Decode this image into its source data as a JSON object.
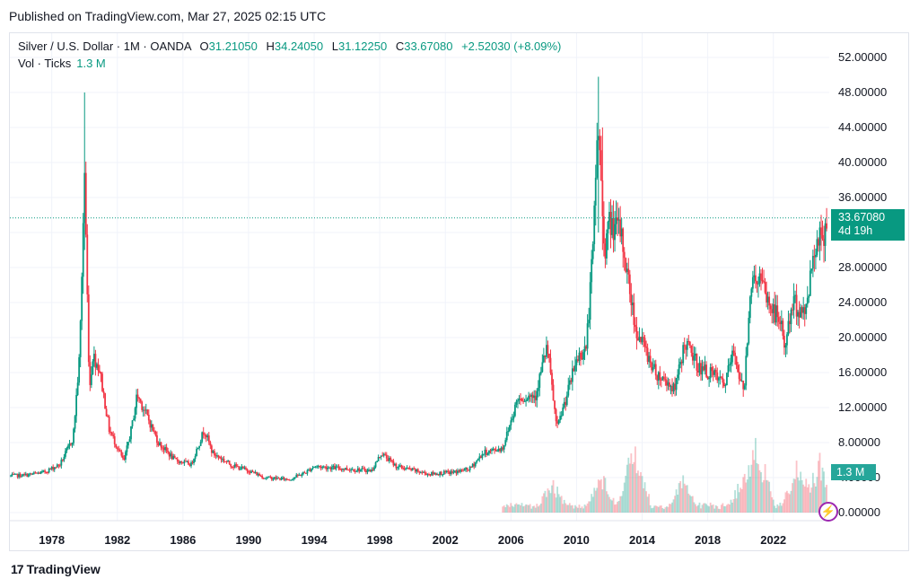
{
  "published": "Published on TradingView.com, Mar 27, 2025 02:15 UTC",
  "legend": {
    "symbol": "Silver / U.S. Dollar · 1M · OANDA",
    "open_label": "O",
    "open": "31.21050",
    "high_label": "H",
    "high": "34.24050",
    "low_label": "L",
    "low": "31.12250",
    "close_label": "C",
    "close": "33.67080",
    "change": "+2.52030 (+8.09%)",
    "volume_label": "Vol · Ticks",
    "volume": "1.3 M"
  },
  "price_tag": {
    "price": "33.67080",
    "countdown": "4d 19h"
  },
  "volume_tag": "1.3 M",
  "branding": {
    "logo_mark": "17",
    "name": "TradingView"
  },
  "colors": {
    "up": "#089981",
    "down": "#f23645",
    "grid": "#f0f3fa",
    "text": "#131722"
  },
  "icons": {
    "bolt": "lightning-icon"
  },
  "chart_data": {
    "type": "candlestick",
    "interval": "1M",
    "ylim": [
      0,
      52
    ],
    "y_ticks": [
      "52.00000",
      "48.00000",
      "44.00000",
      "40.00000",
      "36.00000",
      "32.00000",
      "28.00000",
      "24.00000",
      "20.00000",
      "16.00000",
      "12.00000",
      "8.00000",
      "4.00000",
      "0.00000"
    ],
    "x_ticks": [
      "1978",
      "1982",
      "1986",
      "1990",
      "1994",
      "1998",
      "2002",
      "2006",
      "2010",
      "2014",
      "2018",
      "2022"
    ],
    "x_range": [
      1975.5,
      2025.3
    ],
    "last_price": 33.6708,
    "price_path": [
      [
        1975.5,
        4.2
      ],
      [
        1976.5,
        4.3
      ],
      [
        1977.5,
        4.6
      ],
      [
        1978.5,
        5.5
      ],
      [
        1979.3,
        8.5
      ],
      [
        1979.7,
        18.0
      ],
      [
        1980.0,
        39.0
      ],
      [
        1980.1,
        30.0
      ],
      [
        1980.3,
        14.0
      ],
      [
        1980.5,
        18.0
      ],
      [
        1980.9,
        16.5
      ],
      [
        1981.5,
        9.5
      ],
      [
        1982.4,
        5.8
      ],
      [
        1982.9,
        10.0
      ],
      [
        1983.2,
        13.5
      ],
      [
        1983.7,
        11.5
      ],
      [
        1984.5,
        8.0
      ],
      [
        1985.5,
        6.0
      ],
      [
        1986.5,
        5.5
      ],
      [
        1987.3,
        9.5
      ],
      [
        1987.8,
        6.8
      ],
      [
        1989.0,
        5.4
      ],
      [
        1990.0,
        4.8
      ],
      [
        1991.0,
        4.0
      ],
      [
        1992.5,
        3.8
      ],
      [
        1993.5,
        4.6
      ],
      [
        1994.0,
        5.3
      ],
      [
        1996.0,
        5.0
      ],
      [
        1997.5,
        4.8
      ],
      [
        1998.1,
        6.8
      ],
      [
        1999.0,
        5.3
      ],
      [
        2001.0,
        4.4
      ],
      [
        2002.5,
        4.6
      ],
      [
        2003.5,
        5.0
      ],
      [
        2004.3,
        6.8
      ],
      [
        2005.5,
        7.4
      ],
      [
        2006.4,
        13.0
      ],
      [
        2007.5,
        13.5
      ],
      [
        2008.2,
        19.0
      ],
      [
        2008.8,
        9.5
      ],
      [
        2009.5,
        14.0
      ],
      [
        2010.0,
        17.5
      ],
      [
        2010.6,
        19.0
      ],
      [
        2011.0,
        30.0
      ],
      [
        2011.3,
        45.0
      ],
      [
        2011.7,
        30.0
      ],
      [
        2012.0,
        33.0
      ],
      [
        2012.7,
        32.0
      ],
      [
        2013.2,
        26.0
      ],
      [
        2013.6,
        21.0
      ],
      [
        2014.0,
        19.5
      ],
      [
        2014.8,
        16.0
      ],
      [
        2015.5,
        15.0
      ],
      [
        2016.0,
        14.0
      ],
      [
        2016.6,
        19.5
      ],
      [
        2017.5,
        16.5
      ],
      [
        2018.5,
        15.5
      ],
      [
        2019.0,
        14.5
      ],
      [
        2019.6,
        18.5
      ],
      [
        2020.2,
        13.5
      ],
      [
        2020.6,
        26.0
      ],
      [
        2021.1,
        27.0
      ],
      [
        2021.8,
        23.5
      ],
      [
        2022.4,
        22.0
      ],
      [
        2022.7,
        19.0
      ],
      [
        2023.2,
        24.0
      ],
      [
        2023.9,
        22.5
      ],
      [
        2024.4,
        29.0
      ],
      [
        2024.8,
        32.5
      ],
      [
        2024.95,
        30.0
      ],
      [
        2025.2,
        33.67
      ]
    ],
    "spikes": [
      {
        "x": 1980.0,
        "high": 48.0,
        "low": 30.0
      },
      {
        "x": 2011.3,
        "high": 49.8,
        "low": 32.0
      },
      {
        "x": 2011.6,
        "high": 44.0,
        "low": 30.0
      }
    ],
    "volume_scale": "relative",
    "volume_peaks": [
      {
        "x": 2008.5,
        "v": 0.45
      },
      {
        "x": 2011.5,
        "v": 0.55
      },
      {
        "x": 2013.5,
        "v": 0.95
      },
      {
        "x": 2016.5,
        "v": 0.45
      },
      {
        "x": 2020.3,
        "v": 0.6
      },
      {
        "x": 2021.0,
        "v": 1.0
      },
      {
        "x": 2023.5,
        "v": 0.7
      },
      {
        "x": 2024.8,
        "v": 0.75
      }
    ]
  }
}
